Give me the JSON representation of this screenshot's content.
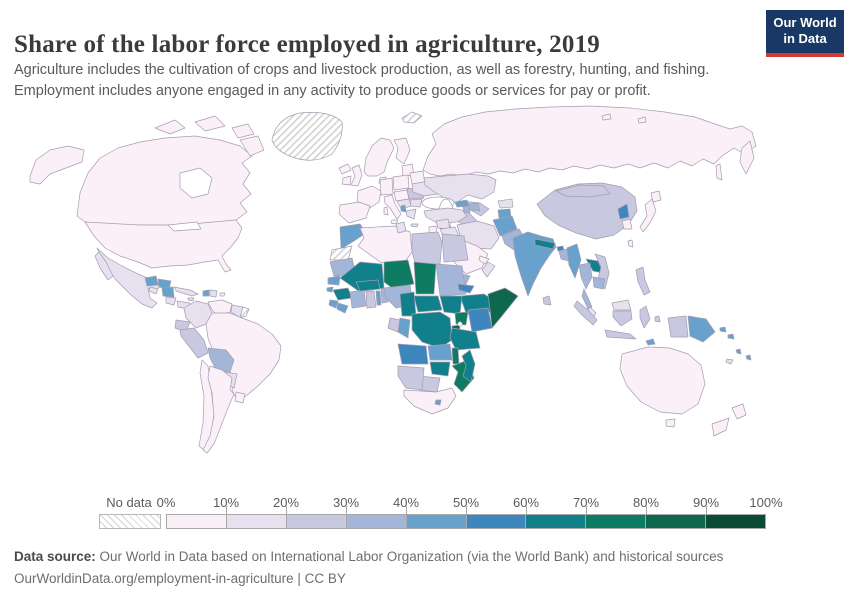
{
  "header": {
    "title": "Share of the labor force employed in agriculture, 2019",
    "subtitle_line1": "Agriculture includes the cultivation of crops and livestock production, as well as forestry, hunting, and fishing.",
    "subtitle_line2": "Employment includes anyone engaged in any activity to produce goods or services for pay or profit.",
    "logo": {
      "line1": "Our World",
      "line2": "in Data",
      "bg_color": "#1a3866",
      "accent_color": "#d23b33"
    }
  },
  "legend": {
    "no_data_label": "No data",
    "ticks": [
      "0%",
      "10%",
      "20%",
      "30%",
      "40%",
      "50%",
      "60%",
      "70%",
      "80%",
      "90%",
      "100%"
    ]
  },
  "footer": {
    "source_label": "Data source:",
    "source_text": " Our World in Data based on International Labor Organization (via the World Bank) and historical sources",
    "link_line": "OurWorldinData.org/employment-in-agriculture | CC BY"
  },
  "chart_data": {
    "type": "choropleth_map",
    "title": "Share of the labor force employed in agriculture, 2019",
    "year": 2019,
    "unit": "% of labor force",
    "legend_position": "bottom",
    "bins": [
      {
        "label": "0%-10%",
        "color": "#fbf0f7"
      },
      {
        "label": "10%-20%",
        "color": "#e7e1ef"
      },
      {
        "label": "20%-30%",
        "color": "#c9c8e1"
      },
      {
        "label": "30%-40%",
        "color": "#a3b6d8"
      },
      {
        "label": "40%-50%",
        "color": "#68a2cc"
      },
      {
        "label": "50%-60%",
        "color": "#3d87be"
      },
      {
        "label": "60%-70%",
        "color": "#10808a"
      },
      {
        "label": "70%-80%",
        "color": "#0e7c62"
      },
      {
        "label": "80%-90%",
        "color": "#0d684e"
      },
      {
        "label": "90%-100%",
        "color": "#0b4a33"
      }
    ],
    "no_data": {
      "label": "No data",
      "pattern": "diagonal-hatch",
      "color": "#d2d2d2"
    },
    "countries": {
      "greenland": {
        "name": "Greenland",
        "bin": "nodata"
      },
      "svalbard": {
        "name": "Svalbard",
        "bin": "nodata"
      },
      "western_sahara": {
        "name": "Western Sahara",
        "bin": "nodata"
      },
      "french_guiana": {
        "name": "French Guiana",
        "bin": "nodata"
      },
      "canada": {
        "name": "Canada",
        "bin": 0
      },
      "usa": {
        "name": "United States",
        "bin": 0
      },
      "mexico": {
        "name": "Mexico",
        "bin": 1
      },
      "guatemala": {
        "name": "Guatemala",
        "bin": 4
      },
      "honduras": {
        "name": "Honduras",
        "bin": 4
      },
      "el_salvador": {
        "name": "El Salvador",
        "bin": 1
      },
      "nicaragua": {
        "name": "Nicaragua",
        "bin": 4
      },
      "costa_rica": {
        "name": "Costa Rica",
        "bin": 1
      },
      "panama": {
        "name": "Panama",
        "bin": 1
      },
      "cuba": {
        "name": "Cuba",
        "bin": 1
      },
      "jamaica": {
        "name": "Jamaica",
        "bin": 1
      },
      "haiti": {
        "name": "Haiti",
        "bin": 4
      },
      "dominican_republic": {
        "name": "Dominican Republic",
        "bin": 1
      },
      "puerto_rico": {
        "name": "Puerto Rico",
        "bin": 0
      },
      "colombia": {
        "name": "Colombia",
        "bin": 1
      },
      "venezuela": {
        "name": "Venezuela",
        "bin": 0
      },
      "guyana": {
        "name": "Guyana and Suriname",
        "bin": 1
      },
      "ecuador": {
        "name": "Ecuador",
        "bin": 2
      },
      "peru": {
        "name": "Peru",
        "bin": 2
      },
      "brazil": {
        "name": "Brazil",
        "bin": 0
      },
      "bolivia": {
        "name": "Bolivia",
        "bin": 3
      },
      "paraguay": {
        "name": "Paraguay",
        "bin": 1
      },
      "uruguay": {
        "name": "Uruguay",
        "bin": 0
      },
      "chile": {
        "name": "Chile",
        "bin": 0
      },
      "argentina": {
        "name": "Argentina",
        "bin": 0
      },
      "iceland": {
        "name": "Iceland",
        "bin": 0
      },
      "ireland": {
        "name": "Ireland",
        "bin": 0
      },
      "uk": {
        "name": "United Kingdom",
        "bin": 0
      },
      "scandinavia": {
        "name": "Norway and Sweden",
        "bin": 0
      },
      "finland": {
        "name": "Finland",
        "bin": 0
      },
      "denmark": {
        "name": "Denmark",
        "bin": 0
      },
      "baltics": {
        "name": "Baltic states",
        "bin": 0
      },
      "belarus": {
        "name": "Belarus",
        "bin": 0
      },
      "poland": {
        "name": "Poland",
        "bin": 0
      },
      "germany": {
        "name": "Germany",
        "bin": 0
      },
      "france": {
        "name": "France",
        "bin": 0
      },
      "spain_portugal": {
        "name": "Spain and Portugal",
        "bin": 0
      },
      "italy": {
        "name": "Italy",
        "bin": 0
      },
      "central_europe": {
        "name": "Central Europe",
        "bin": 0
      },
      "balkans": {
        "name": "Western Balkans",
        "bin": 1
      },
      "romania": {
        "name": "Romania",
        "bin": 2
      },
      "moldova": {
        "name": "Moldova",
        "bin": 2
      },
      "ukraine": {
        "name": "Ukraine",
        "bin": 1
      },
      "bulgaria": {
        "name": "Bulgaria",
        "bin": 1
      },
      "albania": {
        "name": "Albania",
        "bin": 4
      },
      "greece": {
        "name": "Greece",
        "bin": 1
      },
      "cyprus": {
        "name": "Cyprus",
        "bin": 1
      },
      "russia": {
        "name": "Russia",
        "bin": 0
      },
      "kazakhstan": {
        "name": "Kazakhstan",
        "bin": 1
      },
      "uzbekistan": {
        "name": "Uzbekistan",
        "bin": 2
      },
      "turkmenistan": {
        "name": "Turkmenistan",
        "bin": 2
      },
      "kyrgyzstan": {
        "name": "Kyrgyzstan",
        "bin": 1
      },
      "tajikistan": {
        "name": "Tajikistan",
        "bin": 4
      },
      "georgia": {
        "name": "Georgia",
        "bin": 4
      },
      "azerbaijan": {
        "name": "Azerbaijan",
        "bin": 3
      },
      "armenia": {
        "name": "Armenia",
        "bin": 3
      },
      "turkey": {
        "name": "Turkey",
        "bin": 1
      },
      "syria": {
        "name": "Syria",
        "bin": 1
      },
      "jordan_israel": {
        "name": "Israel and Jordan",
        "bin": 0
      },
      "iraq": {
        "name": "Iraq",
        "bin": 1
      },
      "iran": {
        "name": "Iran",
        "bin": 1
      },
      "afghanistan": {
        "name": "Afghanistan",
        "bin": 4
      },
      "pakistan": {
        "name": "Pakistan",
        "bin": 3
      },
      "saudi_arabia": {
        "name": "Saudi Arabia",
        "bin": 0
      },
      "gulf_states": {
        "name": "Gulf states",
        "bin": 0
      },
      "oman": {
        "name": "Oman",
        "bin": 1
      },
      "yemen": {
        "name": "Yemen",
        "bin": 3
      },
      "morocco": {
        "name": "Morocco",
        "bin": 4
      },
      "algeria": {
        "name": "Algeria",
        "bin": 0
      },
      "tunisia": {
        "name": "Tunisia",
        "bin": 1
      },
      "libya": {
        "name": "Libya",
        "bin": 2
      },
      "egypt": {
        "name": "Egypt",
        "bin": 2
      },
      "mauritania": {
        "name": "Mauritania",
        "bin": 3
      },
      "mali": {
        "name": "Mali",
        "bin": 6
      },
      "senegal": {
        "name": "Senegal",
        "bin": 4
      },
      "guinea_bissau": {
        "name": "Guinea-Bissau",
        "bin": 4
      },
      "guinea": {
        "name": "Guinea",
        "bin": 6
      },
      "sierra_leone": {
        "name": "Sierra Leone",
        "bin": 4
      },
      "liberia": {
        "name": "Liberia",
        "bin": 4
      },
      "ivory_coast": {
        "name": "Cote d'Ivoire",
        "bin": 3
      },
      "ghana": {
        "name": "Ghana",
        "bin": 2
      },
      "togo": {
        "name": "Togo",
        "bin": 4
      },
      "benin": {
        "name": "Benin",
        "bin": 3
      },
      "burkina_faso": {
        "name": "Burkina Faso",
        "bin": 6
      },
      "niger": {
        "name": "Niger",
        "bin": 7
      },
      "nigeria": {
        "name": "Nigeria",
        "bin": 3
      },
      "chad": {
        "name": "Chad",
        "bin": 7
      },
      "sudan": {
        "name": "Sudan",
        "bin": 3
      },
      "eritrea": {
        "name": "Eritrea",
        "bin": 5
      },
      "djibouti": {
        "name": "Djibouti",
        "bin": 2
      },
      "ethiopia": {
        "name": "Ethiopia",
        "bin": 6
      },
      "somalia": {
        "name": "Somalia",
        "bin": 8
      },
      "south_sudan": {
        "name": "South Sudan",
        "bin": 6
      },
      "central_african_republic": {
        "name": "Central African Republic",
        "bin": 6
      },
      "cameroon": {
        "name": "Cameroon",
        "bin": 6
      },
      "gabon": {
        "name": "Gabon",
        "bin": 2
      },
      "congo": {
        "name": "Congo",
        "bin": 4
      },
      "drc": {
        "name": "Democratic Republic of Congo",
        "bin": 6
      },
      "uganda": {
        "name": "Uganda",
        "bin": 7
      },
      "kenya": {
        "name": "Kenya",
        "bin": 5
      },
      "rwanda_burundi": {
        "name": "Rwanda and Burundi",
        "bin": 8
      },
      "tanzania": {
        "name": "Tanzania",
        "bin": 6
      },
      "angola": {
        "name": "Angola",
        "bin": 5
      },
      "zambia": {
        "name": "Zambia",
        "bin": 4
      },
      "malawi": {
        "name": "Malawi",
        "bin": 7
      },
      "mozambique": {
        "name": "Mozambique",
        "bin": 7
      },
      "zimbabwe": {
        "name": "Zimbabwe",
        "bin": 6
      },
      "botswana": {
        "name": "Botswana",
        "bin": 2
      },
      "namibia": {
        "name": "Namibia",
        "bin": 2
      },
      "south_africa": {
        "name": "South Africa",
        "bin": 0
      },
      "lesotho": {
        "name": "Lesotho",
        "bin": 4
      },
      "madagascar": {
        "name": "Madagascar",
        "bin": 6
      },
      "india": {
        "name": "India",
        "bin": 4
      },
      "nepal": {
        "name": "Nepal",
        "bin": 6
      },
      "bhutan": {
        "name": "Bhutan",
        "bin": 5
      },
      "bangladesh": {
        "name": "Bangladesh",
        "bin": 3
      },
      "sri_lanka": {
        "name": "Sri Lanka",
        "bin": 2
      },
      "myanmar": {
        "name": "Myanmar",
        "bin": 4
      },
      "thailand": {
        "name": "Thailand",
        "bin": 3
      },
      "malaysia": {
        "name": "Malaysia",
        "bin": 1
      },
      "laos": {
        "name": "Laos",
        "bin": 6
      },
      "vietnam": {
        "name": "Vietnam",
        "bin": 2
      },
      "cambodia": {
        "name": "Cambodia",
        "bin": 3
      },
      "china": {
        "name": "China",
        "bin": 2
      },
      "mongolia": {
        "name": "Mongolia",
        "bin": 2
      },
      "north_korea": {
        "name": "North Korea",
        "bin": 5
      },
      "south_korea": {
        "name": "South Korea",
        "bin": 0
      },
      "japan": {
        "name": "Japan",
        "bin": 0
      },
      "taiwan": {
        "name": "Taiwan",
        "bin": 0
      },
      "philippines": {
        "name": "Philippines",
        "bin": 2
      },
      "indonesia": {
        "name": "Indonesia",
        "bin": 2
      },
      "papua_new_guinea": {
        "name": "Papua New Guinea",
        "bin": 4
      },
      "timor_leste": {
        "name": "Timor-Leste",
        "bin": 4
      },
      "solomon_islands": {
        "name": "Solomon Islands",
        "bin": 4
      },
      "vanuatu": {
        "name": "Vanuatu",
        "bin": 4
      },
      "fiji": {
        "name": "Fiji",
        "bin": 4
      },
      "new_caledonia": {
        "name": "New Caledonia",
        "bin": 1
      },
      "australia": {
        "name": "Australia",
        "bin": 0
      },
      "new_zealand": {
        "name": "New Zealand",
        "bin": 0
      }
    }
  }
}
